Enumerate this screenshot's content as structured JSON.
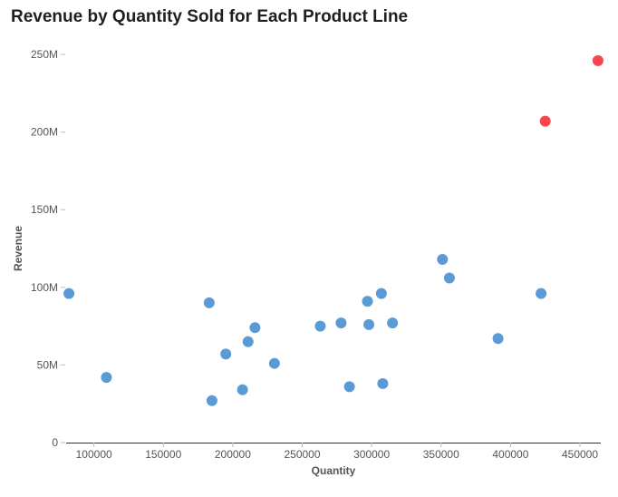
{
  "chart_data": {
    "type": "scatter",
    "title": "Revenue by Quantity Sold for Each Product Line",
    "xlabel": "Quantity",
    "ylabel": "Revenue",
    "xlim": [
      80000,
      465000
    ],
    "ylim": [
      0,
      250000000
    ],
    "x_ticks": [
      100000,
      150000,
      200000,
      250000,
      300000,
      350000,
      400000,
      450000
    ],
    "x_tick_labels": [
      "100000",
      "150000",
      "200000",
      "250000",
      "300000",
      "350000",
      "400000",
      "450000"
    ],
    "y_ticks": [
      0,
      50000000,
      100000000,
      150000000,
      200000000,
      250000000
    ],
    "y_tick_labels": [
      "0",
      "50M",
      "100M",
      "150M",
      "200M",
      "250M"
    ],
    "grid": false,
    "colors": {
      "default": "#5b9bd5",
      "highlight": "#f64650",
      "axis": "#333333",
      "tick": "#bbbbbb"
    },
    "points": [
      {
        "x": 82000,
        "y": 96000000,
        "highlight": false
      },
      {
        "x": 109000,
        "y": 42000000,
        "highlight": false
      },
      {
        "x": 183000,
        "y": 90000000,
        "highlight": false
      },
      {
        "x": 185000,
        "y": 27000000,
        "highlight": false
      },
      {
        "x": 195000,
        "y": 57000000,
        "highlight": false
      },
      {
        "x": 207000,
        "y": 34000000,
        "highlight": false
      },
      {
        "x": 211000,
        "y": 65000000,
        "highlight": false
      },
      {
        "x": 216000,
        "y": 74000000,
        "highlight": false
      },
      {
        "x": 230000,
        "y": 51000000,
        "highlight": false
      },
      {
        "x": 263000,
        "y": 75000000,
        "highlight": false
      },
      {
        "x": 278000,
        "y": 77000000,
        "highlight": false
      },
      {
        "x": 284000,
        "y": 36000000,
        "highlight": false
      },
      {
        "x": 297000,
        "y": 91000000,
        "highlight": false
      },
      {
        "x": 298000,
        "y": 76000000,
        "highlight": false
      },
      {
        "x": 307000,
        "y": 96000000,
        "highlight": false
      },
      {
        "x": 308000,
        "y": 38000000,
        "highlight": false
      },
      {
        "x": 315000,
        "y": 77000000,
        "highlight": false
      },
      {
        "x": 351000,
        "y": 118000000,
        "highlight": false
      },
      {
        "x": 356000,
        "y": 106000000,
        "highlight": false
      },
      {
        "x": 391000,
        "y": 67000000,
        "highlight": false
      },
      {
        "x": 422000,
        "y": 96000000,
        "highlight": false
      },
      {
        "x": 425000,
        "y": 207000000,
        "highlight": true
      },
      {
        "x": 463000,
        "y": 246000000,
        "highlight": true
      }
    ]
  }
}
